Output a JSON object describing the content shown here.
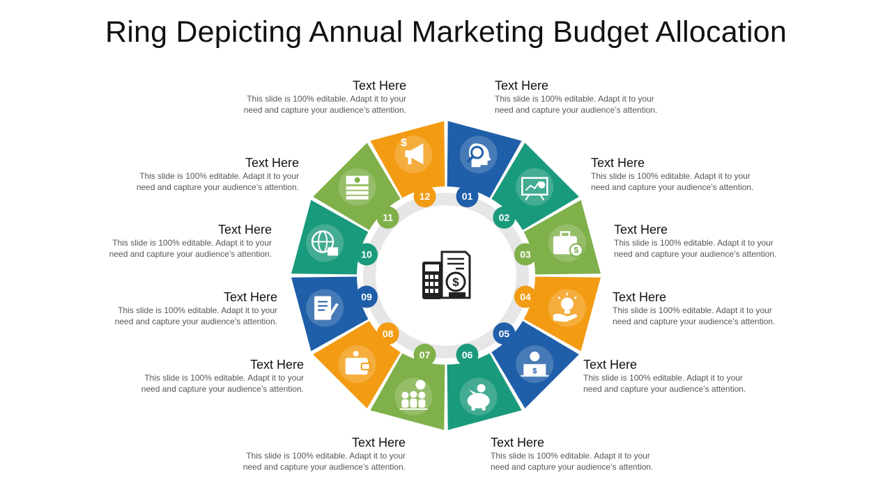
{
  "title": "Ring Depicting Annual Marketing Budget Allocation",
  "colors": {
    "blue": "#1f5ea8",
    "teal": "#1a9a7c",
    "green": "#7fb04a",
    "orange": "#f39b13",
    "gray": "#e6e6e6",
    "icon": "#ffffff",
    "center_icon": "#222222"
  },
  "center_icon": "calculator-document-dollar-icon",
  "segments": [
    {
      "number": "01",
      "color": "blue",
      "icon": "head-magnifier-icon"
    },
    {
      "number": "02",
      "color": "teal",
      "icon": "presentation-chart-icon"
    },
    {
      "number": "03",
      "color": "green",
      "icon": "briefcase-dollar-icon"
    },
    {
      "number": "04",
      "color": "orange",
      "icon": "hand-bulb-icon"
    },
    {
      "number": "05",
      "color": "blue",
      "icon": "person-desk-icon"
    },
    {
      "number": "06",
      "color": "teal",
      "icon": "piggy-bank-icon"
    },
    {
      "number": "07",
      "color": "green",
      "icon": "team-dollar-icon"
    },
    {
      "number": "08",
      "color": "orange",
      "icon": "wallet-icon"
    },
    {
      "number": "09",
      "color": "blue",
      "icon": "notepad-pen-icon"
    },
    {
      "number": "10",
      "color": "teal",
      "icon": "globe-calculator-icon"
    },
    {
      "number": "11",
      "color": "green",
      "icon": "cash-stack-icon"
    },
    {
      "number": "12",
      "color": "orange",
      "icon": "megaphone-dollar-icon"
    }
  ],
  "labels": [
    {
      "heading": "Text Here",
      "body": [
        "This slide is 100% editable. Adapt it to your",
        "need and capture your audience’s attention."
      ]
    },
    {
      "heading": "Text Here",
      "body": [
        "This slide is 100% editable. Adapt it to your",
        "need and capture your audience’s attention."
      ]
    },
    {
      "heading": "Text Here",
      "body": [
        "This slide is 100% editable. Adapt it to your",
        "need and capture your audience’s attention."
      ]
    },
    {
      "heading": "Text Here",
      "body": [
        "This slide is 100% editable. Adapt it to your",
        "need and capture your audience’s attention."
      ]
    },
    {
      "heading": "Text Here",
      "body": [
        "This slide is 100% editable. Adapt it to your",
        "need and capture your audience’s attention."
      ]
    },
    {
      "heading": "Text Here",
      "body": [
        "This slide is 100% editable. Adapt it to your",
        "need and capture your audience’s attention."
      ]
    },
    {
      "heading": "Text Here",
      "body": [
        "This slide is 100% editable. Adapt it to your",
        "need and capture your audience’s attention."
      ]
    },
    {
      "heading": "Text Here",
      "body": [
        "This slide is 100% editable. Adapt it to your",
        "need and capture your audience’s attention."
      ]
    },
    {
      "heading": "Text Here",
      "body": [
        "This slide is 100% editable. Adapt it to your",
        "need and capture your audience’s attention."
      ]
    },
    {
      "heading": "Text Here",
      "body": [
        "This slide is 100% editable. Adapt it to your",
        "need and capture your audience’s attention."
      ]
    },
    {
      "heading": "Text Here",
      "body": [
        "This slide is 100% editable. Adapt it to your",
        "need and capture your audience’s attention."
      ]
    },
    {
      "heading": "Text Here",
      "body": [
        "This slide is 100% editable. Adapt it to your",
        "need and capture your audience’s attention."
      ]
    }
  ]
}
